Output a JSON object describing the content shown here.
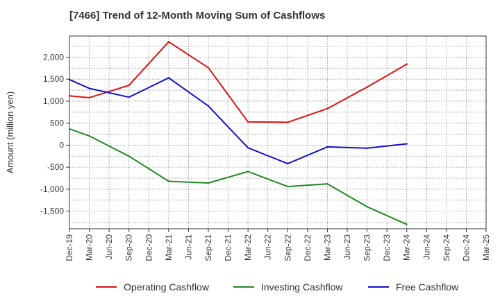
{
  "chart_data": {
    "type": "line",
    "title": "[7466]  Trend of 12-Month Moving Sum of Cashflows",
    "ylabel": "Amount (million yen)",
    "xlabel": "",
    "categories": [
      "Dec-19",
      "Mar-20",
      "Jun-20",
      "Sep-20",
      "Dec-20",
      "Mar-21",
      "Jun-21",
      "Sep-21",
      "Dec-21",
      "Mar-22",
      "Jun-22",
      "Sep-22",
      "Dec-22",
      "Mar-23",
      "Jun-23",
      "Sep-23",
      "Dec-23",
      "Mar-24",
      "Jun-24",
      "Sep-24",
      "Dec-24",
      "Mar-25"
    ],
    "ylim": [
      -1900,
      2480
    ],
    "yticks": [
      2000,
      1500,
      1000,
      500,
      0,
      -500,
      -1000,
      -1500
    ],
    "ytick_labels": [
      "2,000",
      "1,500",
      "1,000",
      "500",
      "0",
      "-500",
      "-1,000",
      "-1,500"
    ],
    "grid": true,
    "legend_position": "bottom",
    "series": [
      {
        "name": "Operating Cashflow",
        "color": "#dd1111",
        "x": [
          "Dec-19",
          "Mar-20",
          "Sep-20",
          "Mar-21",
          "Sep-21",
          "Mar-22",
          "Sep-22",
          "Mar-23",
          "Sep-23",
          "Mar-24"
        ],
        "values": [
          1120,
          1080,
          1360,
          2350,
          1760,
          530,
          520,
          830,
          1320,
          1840
        ]
      },
      {
        "name": "Investing Cashflow",
        "color": "#228822",
        "x": [
          "Dec-19",
          "Mar-20",
          "Sep-20",
          "Mar-21",
          "Sep-21",
          "Mar-22",
          "Sep-22",
          "Mar-23",
          "Sep-23",
          "Mar-24"
        ],
        "values": [
          370,
          210,
          -250,
          -820,
          -860,
          -600,
          -940,
          -880,
          -1400,
          -1800
        ]
      },
      {
        "name": "Free Cashflow",
        "color": "#1111cc",
        "x": [
          "Dec-19",
          "Mar-20",
          "Sep-20",
          "Mar-21",
          "Sep-21",
          "Mar-22",
          "Sep-22",
          "Mar-23",
          "Sep-23",
          "Mar-24"
        ],
        "values": [
          1490,
          1290,
          1090,
          1530,
          890,
          -60,
          -420,
          -40,
          -70,
          30
        ]
      }
    ]
  }
}
